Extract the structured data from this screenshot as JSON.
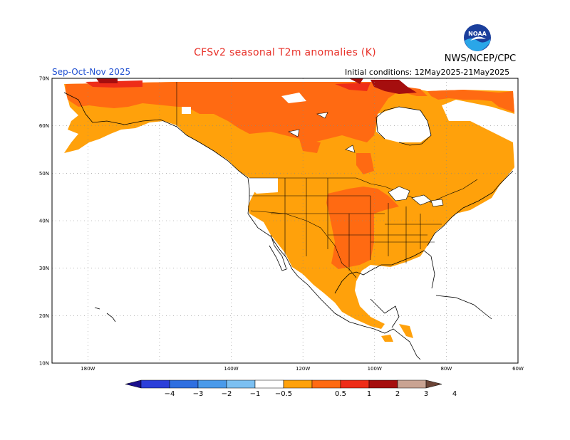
{
  "title": "CFSv2 seasonal T2m anomalies (K)",
  "agency": "NWS/NCEP/CPC",
  "logo_text": "NOAA",
  "season": "Sep-Oct-Nov 2025",
  "initial_conditions": "Initial conditions: 12May2025-21May2025",
  "map": {
    "lon_range": [
      -190,
      -60
    ],
    "lat_range": [
      10,
      70
    ],
    "lat_labels": [
      "70N",
      "60N",
      "50N",
      "40N",
      "30N",
      "20N",
      "10N"
    ],
    "lon_labels": [
      "180W",
      "140W",
      "120W",
      "100W",
      "80W",
      "60W"
    ],
    "gridlines": "dotted"
  },
  "legend": {
    "labels": [
      "-4",
      "-3",
      "-2",
      "-1",
      "-0.5",
      "0.5",
      "1",
      "2",
      "3",
      "4"
    ],
    "colors": [
      "#1a0f8c",
      "#2b3fd9",
      "#2f6fe0",
      "#4a9aea",
      "#7cc0f2",
      "#ffffff",
      "#ffa10b",
      "#ff6a12",
      "#ee2d18",
      "#a50e0e",
      "#c9a392",
      "#6b4436"
    ]
  },
  "colors": {
    "anom_0_5_1": "#ffa10b",
    "anom_1_2": "#ff6a12",
    "anom_2_3": "#ee2d18",
    "anom_3_4": "#a50e0e",
    "title": "#e8322a",
    "season": "#1f4fd1"
  }
}
